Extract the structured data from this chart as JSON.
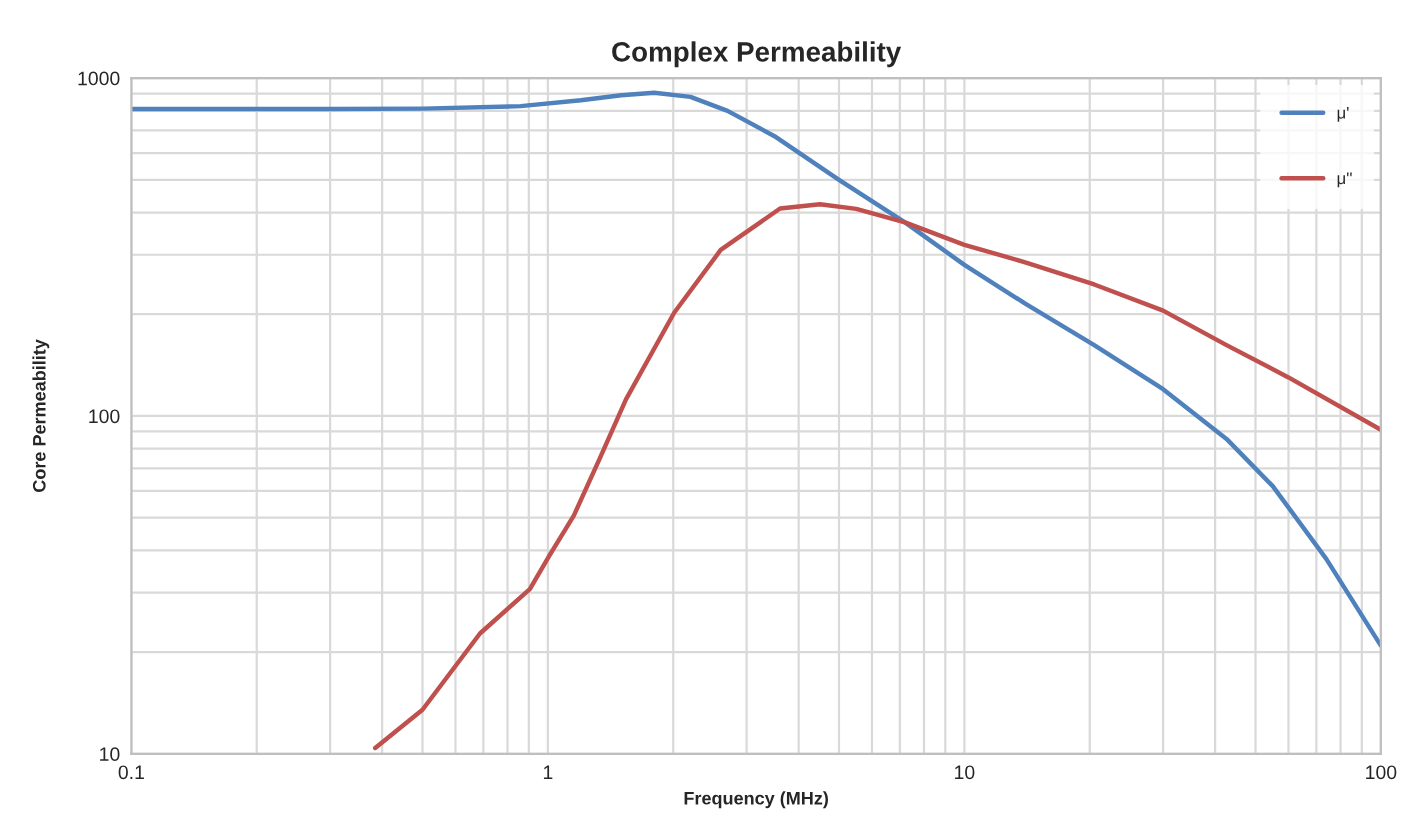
{
  "chart_data": {
    "type": "line",
    "title": "Complex Permeability",
    "xlabel": "Frequency (MHz)",
    "ylabel": "Core Permeability",
    "log": "xy",
    "grid": true,
    "legend": "top right",
    "line_style": "solid",
    "marker": "none",
    "xlim": [
      0.1,
      100
    ],
    "xticks": [
      0.1,
      1,
      10,
      100
    ],
    "ylim": [
      10,
      1000
    ],
    "yticks": [
      10,
      100,
      1000
    ],
    "series": [
      {
        "name": "μ'",
        "color": "#4f81bd",
        "x": [
          0.1,
          0.3,
          0.5,
          0.86,
          1.2,
          1.5,
          1.8,
          2.2,
          2.7,
          3.5,
          5,
          7.2,
          10,
          14,
          20.5,
          30,
          42.6,
          55,
          74,
          100
        ],
        "values": [
          810,
          810,
          812,
          826,
          860,
          890,
          905,
          880,
          800,
          673,
          500,
          374,
          280,
          215,
          162,
          120,
          85.5,
          62,
          37.7,
          20.9
        ]
      },
      {
        "name": "μ''",
        "color": "#c0504d",
        "x": [
          0.385,
          0.5,
          0.687,
          0.905,
          1.01,
          1.155,
          1.33,
          1.54,
          2.01,
          2.6,
          3.61,
          4.5,
          5.5,
          7.2,
          10,
          14,
          20.5,
          30,
          42.6,
          60,
          100
        ],
        "values": [
          10.4,
          13.5,
          22.7,
          30.7,
          38.7,
          50.8,
          74.5,
          112,
          202,
          310,
          411,
          423,
          410,
          374,
          321,
          285,
          245,
          205,
          162,
          130,
          91
        ]
      }
    ]
  }
}
